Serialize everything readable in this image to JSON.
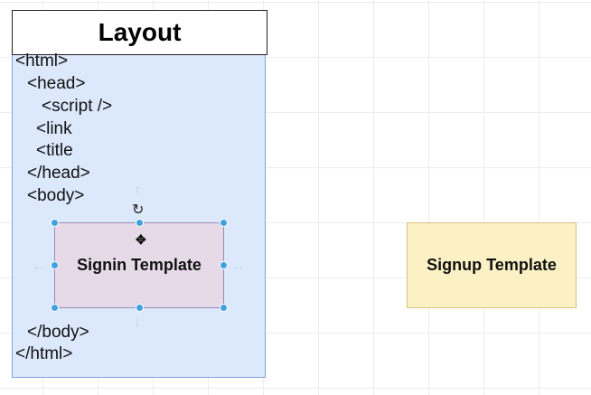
{
  "layout": {
    "title": "Layout",
    "lines": {
      "html_open": "<html>",
      "head_open": "<head>",
      "script": "<script />",
      "link": "<link",
      "title": "<title",
      "head_close": "</head>",
      "body_open": "<body>",
      "body_close": "</body>",
      "html_close": "</html>"
    }
  },
  "signin": {
    "label": "Signin Template"
  },
  "signup": {
    "label": "Signup Template"
  },
  "icons": {
    "rotate": "rotate-icon",
    "move": "move-icon"
  },
  "colors": {
    "layout_fill": "#dce8fc",
    "signin_fill": "#e6dae9",
    "signup_fill": "#fbf1c5",
    "selection_handle": "#3fa1e0"
  }
}
